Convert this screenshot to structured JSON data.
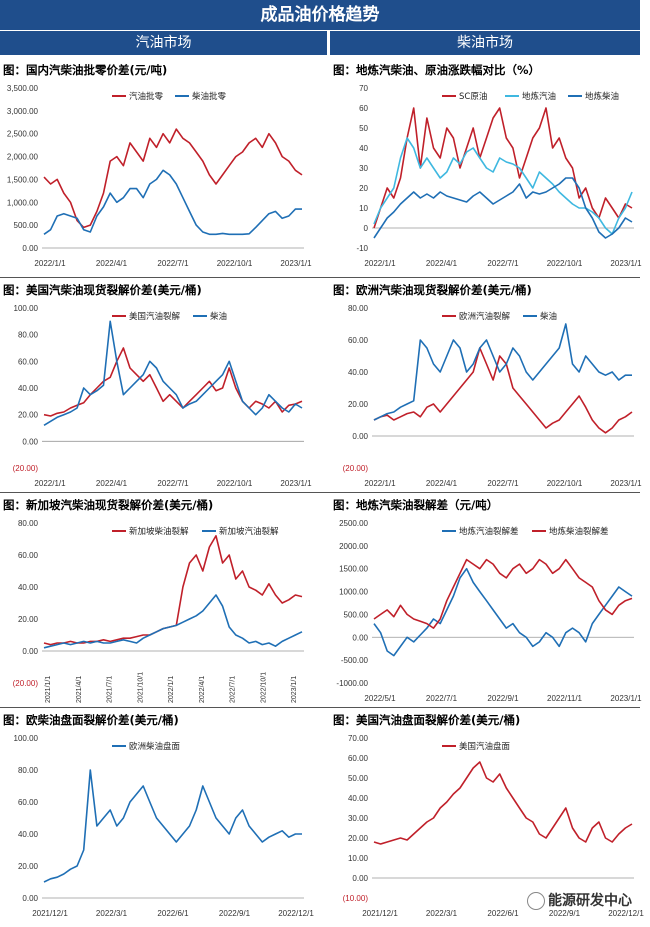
{
  "header": {
    "title": "成品油价格趋势",
    "left_section": "汽油市场",
    "right_section": "柴油市场"
  },
  "watermark": "能源研发中心",
  "colors": {
    "red": "#c0202a",
    "blue": "#1f6fb5",
    "cyan": "#3fb8e0",
    "header": "#1f4e8c"
  },
  "chart_data": [
    {
      "id": "c1",
      "type": "line",
      "title": "图：国内汽柴油批零价差(元/吨)",
      "yticks": [
        "3,500.00",
        "3,000.00",
        "2,500.00",
        "2,000.00",
        "1,500.00",
        "1,000.00",
        "500.00",
        "0.00"
      ],
      "ylim": [
        0,
        3500
      ],
      "xticks": [
        "2022/1/1",
        "2022/4/1",
        "2022/7/1",
        "2022/10/1",
        "2023/1/1"
      ],
      "series": [
        {
          "name": "汽油批零",
          "color": "red",
          "values": [
            1550,
            1400,
            1500,
            1200,
            1000,
            600,
            450,
            500,
            800,
            1200,
            1900,
            2000,
            1800,
            2300,
            2100,
            1900,
            2400,
            2200,
            2500,
            2300,
            2600,
            2400,
            2300,
            2100,
            1900,
            1600,
            1400,
            1600,
            1800,
            2000,
            2100,
            2300,
            2400,
            2200,
            2500,
            2300,
            2000,
            1900,
            1700,
            1600
          ]
        },
        {
          "name": "柴油批零",
          "color": "blue",
          "values": [
            300,
            400,
            700,
            750,
            700,
            650,
            400,
            350,
            700,
            900,
            1200,
            1000,
            1100,
            1300,
            1300,
            1100,
            1400,
            1500,
            1700,
            1600,
            1400,
            1100,
            800,
            500,
            350,
            300,
            300,
            320,
            300,
            300,
            300,
            310,
            450,
            600,
            750,
            800,
            650,
            700,
            850,
            850
          ]
        }
      ],
      "legend": "top-center"
    },
    {
      "id": "c2",
      "type": "line",
      "title": "图：地炼汽柴油、原油涨跌幅对比（%）",
      "yticks": [
        "70",
        "60",
        "50",
        "40",
        "30",
        "20",
        "10",
        "0",
        "-10"
      ],
      "ylim": [
        -10,
        70
      ],
      "xticks": [
        "2022/1/1",
        "2022/4/1",
        "2022/7/1",
        "2022/10/1",
        "2023/1/1"
      ],
      "series": [
        {
          "name": "SC原油",
          "color": "red",
          "values": [
            0,
            10,
            20,
            15,
            25,
            45,
            60,
            30,
            55,
            40,
            35,
            50,
            45,
            30,
            40,
            50,
            35,
            45,
            55,
            60,
            45,
            40,
            25,
            35,
            45,
            50,
            60,
            40,
            45,
            35,
            30,
            15,
            20,
            10,
            5,
            15,
            10,
            5,
            12,
            10
          ]
        },
        {
          "name": "地炼汽油",
          "color": "cyan",
          "values": [
            2,
            10,
            15,
            20,
            35,
            45,
            40,
            30,
            35,
            30,
            25,
            28,
            35,
            32,
            38,
            40,
            35,
            30,
            28,
            35,
            33,
            32,
            30,
            25,
            20,
            28,
            25,
            22,
            18,
            15,
            12,
            10,
            10,
            8,
            5,
            0,
            -3,
            5,
            10,
            18
          ]
        },
        {
          "name": "地炼柴油",
          "color": "blue",
          "values": [
            -5,
            0,
            5,
            8,
            12,
            15,
            18,
            15,
            17,
            15,
            18,
            16,
            15,
            14,
            13,
            16,
            18,
            15,
            12,
            14,
            16,
            18,
            22,
            15,
            18,
            17,
            18,
            20,
            22,
            25,
            25,
            20,
            10,
            5,
            -2,
            -5,
            -3,
            0,
            5,
            3
          ]
        }
      ],
      "legend": "top-right"
    },
    {
      "id": "c3",
      "type": "line",
      "title": "图：美国汽柴油现货裂解价差(美元/桶)",
      "yticks": [
        "100.00",
        "80.00",
        "60.00",
        "40.00",
        "20.00",
        "0.00",
        "(20.00)"
      ],
      "ylim": [
        -20,
        100
      ],
      "xticks": [
        "2022/1/1",
        "2022/4/1",
        "2022/7/1",
        "2022/10/1",
        "2023/1/1"
      ],
      "series": [
        {
          "name": "美国汽油裂解",
          "color": "red",
          "values": [
            20,
            19,
            21,
            22,
            25,
            27,
            29,
            35,
            40,
            45,
            48,
            60,
            70,
            55,
            50,
            45,
            50,
            40,
            30,
            35,
            30,
            25,
            30,
            35,
            40,
            45,
            38,
            40,
            55,
            40,
            30,
            25,
            30,
            28,
            25,
            30,
            22,
            27,
            28,
            30
          ]
        },
        {
          "name": "柴油",
          "color": "blue",
          "values": [
            12,
            15,
            18,
            20,
            22,
            25,
            40,
            35,
            38,
            42,
            90,
            60,
            35,
            40,
            45,
            50,
            60,
            55,
            45,
            40,
            35,
            25,
            28,
            30,
            35,
            40,
            45,
            50,
            60,
            45,
            30,
            25,
            20,
            25,
            35,
            30,
            25,
            22,
            28,
            25
          ]
        }
      ],
      "legend": "top-center"
    },
    {
      "id": "c4",
      "type": "line",
      "title": "图：欧洲汽柴油现货裂解价差(美元/桶)",
      "yticks": [
        "80.00",
        "60.00",
        "40.00",
        "20.00",
        "0.00",
        "(20.00)"
      ],
      "ylim": [
        -20,
        80
      ],
      "xticks": [
        "2022/1/1",
        "2022/4/1",
        "2022/7/1",
        "2022/10/1",
        "2023/1/1"
      ],
      "series": [
        {
          "name": "欧洲汽油裂解",
          "color": "red",
          "values": [
            10,
            12,
            13,
            10,
            12,
            14,
            15,
            12,
            18,
            20,
            15,
            20,
            25,
            30,
            35,
            40,
            55,
            45,
            35,
            50,
            45,
            30,
            25,
            20,
            15,
            10,
            5,
            8,
            10,
            15,
            20,
            25,
            18,
            10,
            5,
            2,
            5,
            10,
            12,
            15
          ]
        },
        {
          "name": "柴油",
          "color": "blue",
          "values": [
            10,
            12,
            14,
            15,
            18,
            20,
            22,
            60,
            55,
            45,
            40,
            50,
            60,
            55,
            40,
            45,
            55,
            60,
            50,
            40,
            45,
            55,
            50,
            40,
            35,
            40,
            45,
            50,
            55,
            70,
            45,
            40,
            50,
            45,
            40,
            38,
            40,
            35,
            38,
            38
          ]
        }
      ],
      "legend": "top-center"
    },
    {
      "id": "c5",
      "type": "line",
      "title": "图：新加坡汽柴油现货裂解价差(美元/桶)",
      "yticks": [
        "80.00",
        "60.00",
        "40.00",
        "20.00",
        "0.00",
        "(20.00)"
      ],
      "ylim": [
        -20,
        80
      ],
      "xticks": [
        "2021/1/1",
        "2021/4/1",
        "2021/7/1",
        "2021/10/1",
        "2022/1/1",
        "2022/4/1",
        "2022/7/1",
        "2022/10/1",
        "2023/1/1"
      ],
      "series": [
        {
          "name": "新加坡柴油裂解",
          "color": "red",
          "values": [
            5,
            4,
            5,
            5,
            6,
            5,
            5,
            6,
            6,
            7,
            6,
            7,
            8,
            8,
            9,
            10,
            10,
            12,
            14,
            15,
            16,
            40,
            55,
            60,
            50,
            65,
            72,
            55,
            60,
            45,
            50,
            40,
            38,
            35,
            42,
            35,
            30,
            32,
            35,
            34
          ]
        },
        {
          "name": "新加坡汽油裂解",
          "color": "blue",
          "values": [
            2,
            3,
            4,
            5,
            4,
            5,
            6,
            5,
            6,
            5,
            5,
            6,
            7,
            6,
            5,
            8,
            10,
            12,
            14,
            15,
            16,
            18,
            20,
            22,
            25,
            30,
            35,
            28,
            15,
            10,
            8,
            5,
            6,
            4,
            5,
            3,
            6,
            8,
            10,
            12
          ]
        }
      ],
      "legend": "top-center"
    },
    {
      "id": "c6",
      "type": "line",
      "title": "图：地炼汽柴油裂解差（元/吨）",
      "yticks": [
        "2500.00",
        "2000.00",
        "1500.00",
        "1000.00",
        "500.00",
        "0.00",
        "-500.00",
        "-1000.00"
      ],
      "ylim": [
        -1000,
        2500
      ],
      "xticks": [
        "2022/5/1",
        "2022/7/1",
        "2022/9/1",
        "2022/11/1",
        "2023/1/1"
      ],
      "series": [
        {
          "name": "地炼汽油裂解差",
          "color": "blue",
          "values": [
            300,
            100,
            -300,
            -400,
            -200,
            0,
            -100,
            50,
            200,
            400,
            300,
            600,
            900,
            1300,
            1500,
            1200,
            1000,
            800,
            600,
            400,
            200,
            300,
            100,
            0,
            -200,
            -100,
            100,
            0,
            -200,
            100,
            200,
            100,
            -100,
            300,
            500,
            700,
            900,
            1100,
            1000,
            900
          ]
        },
        {
          "name": "地炼柴油裂解差",
          "color": "red",
          "values": [
            400,
            500,
            600,
            450,
            700,
            500,
            400,
            350,
            300,
            200,
            400,
            800,
            1100,
            1400,
            1700,
            1600,
            1500,
            1700,
            1600,
            1400,
            1300,
            1500,
            1600,
            1400,
            1500,
            1700,
            1600,
            1400,
            1500,
            1700,
            1500,
            1300,
            1200,
            1100,
            800,
            600,
            500,
            700,
            800,
            850
          ]
        }
      ],
      "legend": "top-center"
    },
    {
      "id": "c7",
      "type": "line",
      "title": "图：欧柴油盘面裂解价差(美元/桶)",
      "yticks": [
        "100.00",
        "80.00",
        "60.00",
        "40.00",
        "20.00",
        "0.00"
      ],
      "ylim": [
        0,
        100
      ],
      "xticks": [
        "2021/12/1",
        "2022/3/1",
        "2022/6/1",
        "2022/9/1",
        "2022/12/1"
      ],
      "series": [
        {
          "name": "欧洲柴油盘面",
          "color": "blue",
          "values": [
            10,
            12,
            13,
            15,
            18,
            20,
            30,
            80,
            45,
            50,
            55,
            45,
            50,
            60,
            65,
            70,
            60,
            50,
            45,
            40,
            35,
            40,
            45,
            55,
            70,
            60,
            50,
            45,
            40,
            50,
            55,
            45,
            40,
            35,
            38,
            40,
            42,
            38,
            40,
            40
          ]
        }
      ],
      "legend": "top-center"
    },
    {
      "id": "c8",
      "type": "line",
      "title": "图：美国汽油盘面裂解价差(美元/桶)",
      "yticks": [
        "70.00",
        "60.00",
        "50.00",
        "40.00",
        "30.00",
        "20.00",
        "10.00",
        "0.00",
        "(10.00)"
      ],
      "ylim": [
        -10,
        70
      ],
      "xticks": [
        "2021/12/1",
        "2022/3/1",
        "2022/6/1",
        "2022/9/1",
        "2022/12/1"
      ],
      "series": [
        {
          "name": "美国汽油盘面",
          "color": "red",
          "values": [
            18,
            17,
            18,
            19,
            20,
            19,
            22,
            25,
            28,
            30,
            35,
            38,
            42,
            45,
            50,
            55,
            58,
            50,
            48,
            52,
            45,
            40,
            35,
            30,
            28,
            22,
            20,
            25,
            30,
            35,
            25,
            20,
            18,
            25,
            28,
            20,
            18,
            22,
            25,
            27
          ]
        }
      ],
      "legend": "top-center"
    }
  ]
}
